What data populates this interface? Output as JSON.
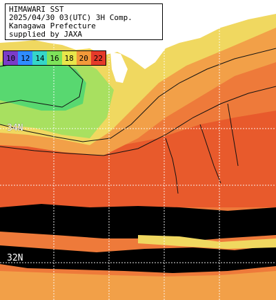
{
  "title": {
    "line1": "HIMAWARI SST",
    "line2": "2025/04/30 03(UTC) 3H Comp.",
    "line3": "Kanagawa Prefecture",
    "line4": "supplied by JAXA"
  },
  "legend": {
    "labels": [
      "10",
      "12",
      "14",
      "16",
      "18",
      "20",
      "22"
    ],
    "colors": [
      "#7a3cc8",
      "#2f8cff",
      "#35d6c8",
      "#7ee35a",
      "#e9e64a",
      "#f39a3a",
      "#e53a2a"
    ]
  },
  "lat_labels": {
    "north": "34N",
    "south": "32N"
  },
  "map_colors": {
    "land": "#ffffff",
    "sst_14": "#58d870",
    "sst_16": "#a8e060",
    "sst_18": "#f0d860",
    "sst_19": "#f2a048",
    "sst_20": "#ee7a3a",
    "sst_21": "#e85a2c",
    "cloud_missing": "#000000",
    "contour": "#111111"
  }
}
